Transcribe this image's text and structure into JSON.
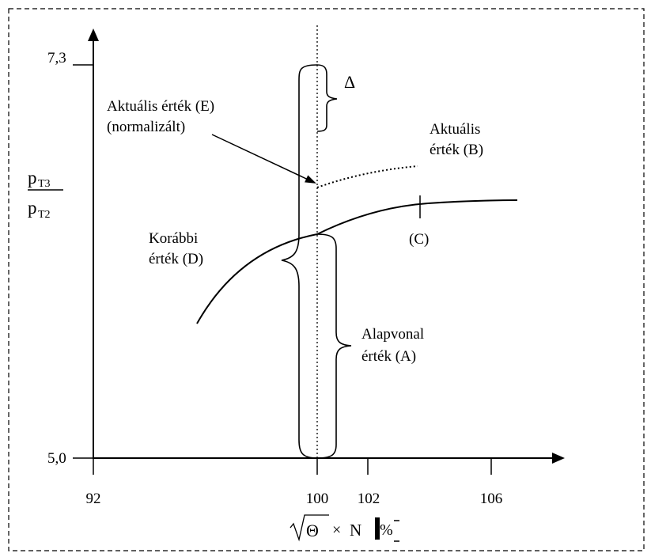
{
  "chart_data": {
    "type": "line",
    "title": "",
    "x_ticks": [
      "92",
      "100",
      "102",
      "106"
    ],
    "y_ticks": [
      "7,3",
      "5,0"
    ],
    "ylim": [
      5.0,
      7.3
    ],
    "grid": false,
    "xlabel": {
      "symbol": "Θ",
      "times": "×",
      "var": "N",
      "unit": "%"
    },
    "ylabel": {
      "num_p": "p",
      "num_sub": "T3",
      "den_p": "p",
      "den_sub": "T2"
    },
    "reference_x": "100",
    "curves": [
      "Korábbi érték (D)",
      "Aktuális érték (B)"
    ],
    "annotations": {
      "delta": "Δ",
      "actual_e_line1": "Aktuális érték (E)",
      "actual_e_line2": "(normalizált)",
      "actual_b_line1": "Aktuális",
      "actual_b_line2": "érték (B)",
      "previous_d_line1": "Korábbi",
      "previous_d_line2": "érték (D)",
      "point_c": "(C)",
      "baseline_a_line1": "Alapvonal",
      "baseline_a_line2": "érték (A)"
    }
  }
}
